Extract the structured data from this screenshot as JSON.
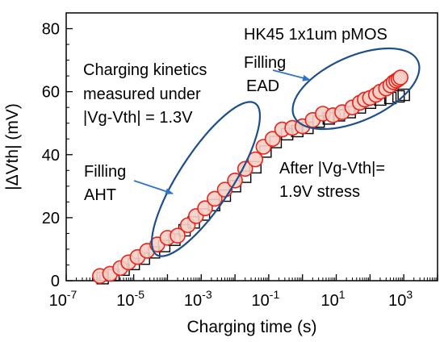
{
  "chart_data": {
    "type": "scatter",
    "title": "",
    "xlabel": "Charging time (s)",
    "ylabel": "|ΔVth| (mV)",
    "xscale": "log",
    "xlim": [
      1e-07,
      10000
    ],
    "ylim": [
      0,
      85
    ],
    "x_tick_labels": [
      {
        "base": "10",
        "exp": "-7",
        "value": 1e-07
      },
      {
        "base": "10",
        "exp": "-5",
        "value": 1e-05
      },
      {
        "base": "10",
        "exp": "-3",
        "value": 0.001
      },
      {
        "base": "10",
        "exp": "-1",
        "value": 0.1
      },
      {
        "base": "10",
        "exp": "1",
        "value": 10
      },
      {
        "base": "10",
        "exp": "3",
        "value": 1000
      }
    ],
    "y_ticks": [
      0,
      20,
      40,
      60,
      80
    ],
    "grid": false,
    "colors": {
      "circle_fill": "#f6d0c6",
      "circle_stroke": "#e8231b",
      "square_stroke": "#000000",
      "ellipse": "#1f4e8c",
      "arrow": "#2e75c6"
    },
    "series": [
      {
        "marker": "circle",
        "points": [
          [
            1e-06,
            1.5
          ],
          [
            2e-06,
            2.2
          ],
          [
            4e-06,
            4.0
          ],
          [
            7e-06,
            5.8
          ],
          [
            1.3e-05,
            7.5
          ],
          [
            2.5e-05,
            9.5
          ],
          [
            5e-05,
            11.5
          ],
          [
            0.0001,
            13.6
          ],
          [
            0.0002,
            14.3
          ],
          [
            0.0004,
            17.6
          ],
          [
            0.0007,
            20.5
          ],
          [
            0.0013,
            23.0
          ],
          [
            0.0025,
            26.0
          ],
          [
            0.005,
            28.9
          ],
          [
            0.01,
            31.8
          ],
          [
            0.02,
            35.5
          ],
          [
            0.04,
            38.5
          ],
          [
            0.07,
            42.5
          ],
          [
            0.13,
            45.0
          ],
          [
            0.25,
            48.0
          ],
          [
            0.5,
            48.5
          ],
          [
            1.0,
            49.0
          ],
          [
            2.0,
            51.0
          ],
          [
            4.0,
            53.0
          ],
          [
            8.0,
            52.5
          ],
          [
            15,
            53.5
          ],
          [
            30,
            55.0
          ],
          [
            50,
            56.5
          ],
          [
            70,
            57.5
          ],
          [
            100,
            58.0
          ],
          [
            150,
            59.0
          ],
          [
            200,
            60.0
          ],
          [
            300,
            61.0
          ],
          [
            400,
            62.0
          ],
          [
            500,
            63.0
          ],
          [
            600,
            63.5
          ],
          [
            700,
            64.0
          ],
          [
            800,
            64.5
          ]
        ]
      },
      {
        "marker": "square",
        "points": [
          [
            1.2e-06,
            0.8
          ],
          [
            2.5e-06,
            1.8
          ],
          [
            5e-06,
            3.5
          ],
          [
            1e-05,
            5.3
          ],
          [
            2e-05,
            7.0
          ],
          [
            4e-05,
            9.0
          ],
          [
            8e-05,
            11.0
          ],
          [
            0.00016,
            13.0
          ],
          [
            0.00032,
            16.0
          ],
          [
            0.0006,
            18.5
          ],
          [
            0.0012,
            21.0
          ],
          [
            0.0024,
            24.0
          ],
          [
            0.005,
            27.0
          ],
          [
            0.01,
            30.0
          ],
          [
            0.02,
            33.0
          ],
          [
            0.04,
            36.0
          ],
          [
            0.08,
            41.0
          ],
          [
            0.16,
            44.0
          ],
          [
            0.35,
            46.5
          ],
          [
            0.7,
            47.5
          ],
          [
            1.4,
            48.5
          ],
          [
            3.0,
            50.5
          ],
          [
            6.0,
            51.5
          ],
          [
            12,
            52.5
          ],
          [
            25,
            53.5
          ],
          [
            50,
            55.0
          ],
          [
            100,
            56.5
          ],
          [
            200,
            57.5
          ],
          [
            400,
            58.0
          ],
          [
            700,
            58.5
          ],
          [
            1000,
            59.0
          ]
        ]
      }
    ],
    "annotations": [
      {
        "lines": [
          "HK45 1x1um pMOS"
        ]
      },
      {
        "lines": [
          "Charging kinetics",
          "measured under",
          "|Vg-Vth| = 1.3V"
        ]
      },
      {
        "lines": [
          "Filling",
          "EAD"
        ]
      },
      {
        "lines": [
          "Filling",
          "AHT"
        ]
      },
      {
        "lines": [
          "After |Vg-Vth|=",
          "1.9V stress"
        ]
      }
    ]
  }
}
